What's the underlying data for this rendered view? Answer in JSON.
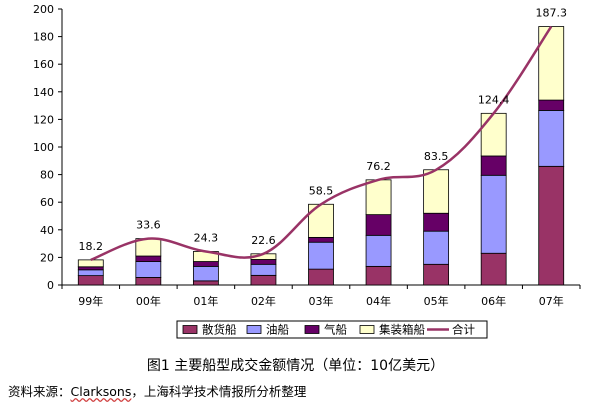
{
  "chart_data": {
    "type": "bar",
    "stacked": true,
    "categories": [
      "99年",
      "00年",
      "01年",
      "02年",
      "03年",
      "04年",
      "05年",
      "06年",
      "07年"
    ],
    "series": [
      {
        "name": "散货船",
        "color": "#993366",
        "values": [
          6.8,
          5.5,
          3.0,
          7.0,
          11.5,
          13.5,
          15.0,
          23.0,
          86.0
        ]
      },
      {
        "name": "油船",
        "color": "#9999ff",
        "values": [
          4.2,
          11.5,
          10.5,
          8.0,
          19.5,
          22.5,
          24.0,
          56.5,
          40.5
        ]
      },
      {
        "name": "气船",
        "color": "#660066",
        "values": [
          2.2,
          4.0,
          3.5,
          3.5,
          3.5,
          15.0,
          13.0,
          14.0,
          7.5
        ]
      },
      {
        "name": "集装箱船",
        "color": "#ffffcc",
        "values": [
          5.0,
          12.6,
          7.3,
          4.1,
          24.0,
          25.2,
          31.5,
          30.9,
          53.3
        ]
      }
    ],
    "total": {
      "name": "合计",
      "color": "#993366",
      "values": [
        18.2,
        33.6,
        24.3,
        22.6,
        58.5,
        76.2,
        83.5,
        124.4,
        187.3
      ],
      "labels": [
        "18.2",
        "33.6",
        "24.3",
        "22.6",
        "58.5",
        "76.2",
        "83.5",
        "124.4",
        "187.3"
      ]
    },
    "ylim": [
      0,
      200
    ],
    "yticks": [
      "0",
      "20",
      "40",
      "60",
      "80",
      "100",
      "120",
      "140",
      "160",
      "180",
      "200"
    ],
    "grid": false,
    "legend_position": "bottom"
  },
  "caption": "图1 主要船型成交金额情况（单位：10亿美元）",
  "source": {
    "prefix": "资料来源：",
    "name": "Clarksons",
    "suffix": "，上海科学技术情报所分析整理"
  }
}
